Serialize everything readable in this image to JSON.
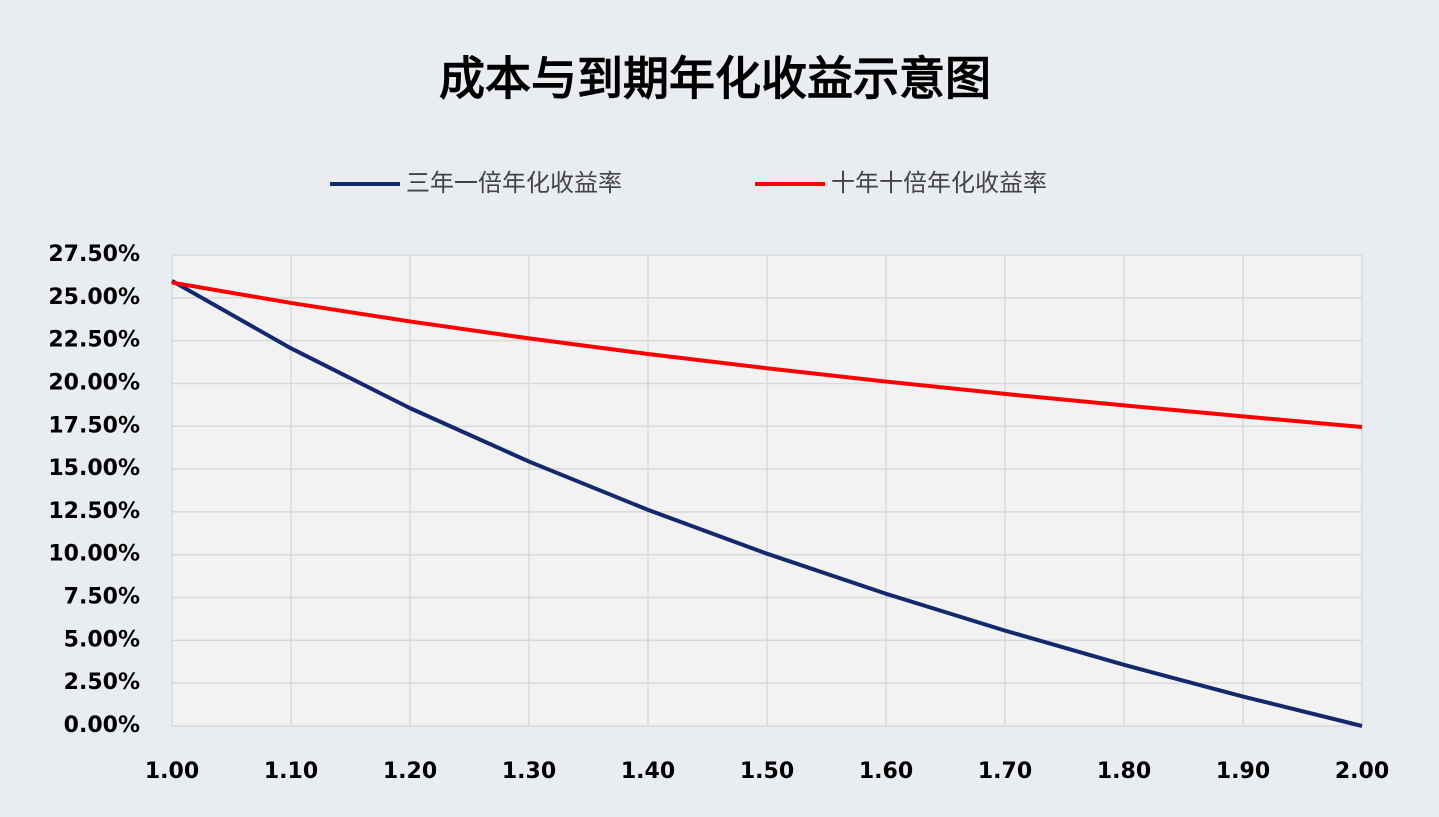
{
  "chart_data": {
    "type": "line",
    "title": "成本与到期年化收益示意图",
    "x": [
      1.0,
      1.1,
      1.2,
      1.3,
      1.4,
      1.5,
      1.6,
      1.7,
      1.8,
      1.9,
      2.0
    ],
    "series": [
      {
        "name": "三年一倍年化收益率",
        "color": "#14286e",
        "values": [
          25.99,
          22.05,
          18.56,
          15.44,
          12.62,
          10.06,
          7.72,
          5.57,
          3.57,
          1.72,
          0
        ]
      },
      {
        "name": "十年十倍年化收益率",
        "color": "#ff0000",
        "values": [
          25.89,
          24.7,
          23.62,
          22.63,
          21.72,
          20.89,
          20.11,
          19.39,
          18.72,
          18.08,
          17.46
        ]
      }
    ],
    "xlim": [
      1.0,
      2.0
    ],
    "xticks": [
      {
        "value": 1.0,
        "label": "1.00"
      },
      {
        "value": 1.1,
        "label": "1.10"
      },
      {
        "value": 1.2,
        "label": "1.20"
      },
      {
        "value": 1.3,
        "label": "1.30"
      },
      {
        "value": 1.4,
        "label": "1.40"
      },
      {
        "value": 1.5,
        "label": "1.50"
      },
      {
        "value": 1.6,
        "label": "1.60"
      },
      {
        "value": 1.7,
        "label": "1.70"
      },
      {
        "value": 1.8,
        "label": "1.80"
      },
      {
        "value": 1.9,
        "label": "1.90"
      },
      {
        "value": 2.0,
        "label": "2.00"
      }
    ],
    "ylim": [
      0,
      27.5
    ],
    "yticks": [
      {
        "value": 0,
        "label": "0.00%"
      },
      {
        "value": 2.5,
        "label": "2.50%"
      },
      {
        "value": 5,
        "label": "5.00%"
      },
      {
        "value": 7.5,
        "label": "7.50%"
      },
      {
        "value": 10,
        "label": "10.00%"
      },
      {
        "value": 12.5,
        "label": "12.50%"
      },
      {
        "value": 15,
        "label": "15.00%"
      },
      {
        "value": 17.5,
        "label": "17.50%"
      },
      {
        "value": 20,
        "label": "20.00%"
      },
      {
        "value": 22.5,
        "label": "22.50%"
      },
      {
        "value": 25,
        "label": "25.00%"
      },
      {
        "value": 27.5,
        "label": "27.50%"
      }
    ],
    "grid": true,
    "legend": "top"
  }
}
